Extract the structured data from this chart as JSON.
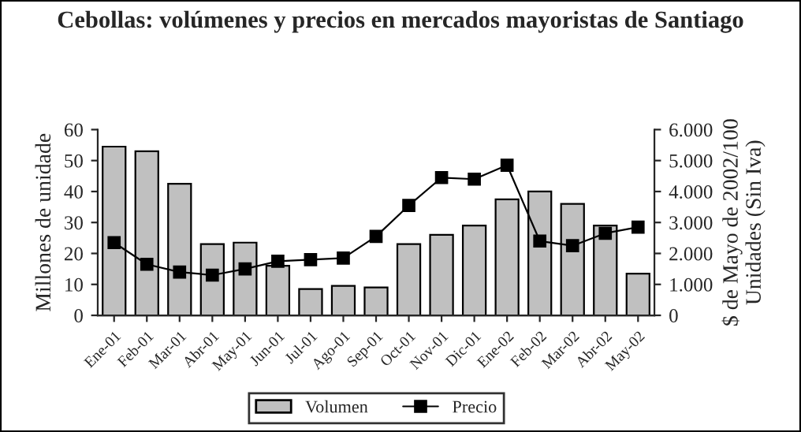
{
  "chart_data": {
    "type": "bar",
    "title": "Cebollas: volúmenes y precios en mercados mayoristas de Santiago",
    "ylabel": "Millones de unidade",
    "y2label": "$ de Mayo de 2002/100\nUnidades (Sin Iva)",
    "categories": [
      "Ene-01",
      "Feb-01",
      "Mar-01",
      "Abr-01",
      "May-01",
      "Jun-01",
      "Jul-01",
      "Ago-01",
      "Sep-01",
      "Oct-01",
      "Nov-01",
      "Dic-01",
      "Ene-02",
      "Feb-02",
      "Mar-02",
      "Abr-02",
      "May-02"
    ],
    "series": [
      {
        "name": "Volumen",
        "color": "#c0c0c0",
        "values": [
          54.5,
          53,
          42.5,
          23,
          23.5,
          16,
          8.5,
          9.5,
          9,
          23,
          26,
          29,
          37.5,
          40,
          36,
          29,
          13.5
        ]
      },
      {
        "name": "Precio",
        "type": "line",
        "axis": "y2",
        "color": "#000000",
        "marker": "square",
        "values": [
          2350,
          1650,
          1400,
          1300,
          1500,
          1750,
          1800,
          1850,
          2550,
          3550,
          4450,
          4400,
          4850,
          2400,
          2250,
          2650,
          2850
        ]
      }
    ],
    "ylim": [
      0,
      60
    ],
    "yticks": [
      0,
      10,
      20,
      30,
      40,
      50,
      60
    ],
    "y2lim": [
      0,
      6000
    ],
    "y2ticks": [
      {
        "value": 0,
        "label": "0"
      },
      {
        "value": 1000,
        "label": "1.000"
      },
      {
        "value": 2000,
        "label": "2.000"
      },
      {
        "value": 3000,
        "label": "3.000"
      },
      {
        "value": 4000,
        "label": "4.000"
      },
      {
        "value": 5000,
        "label": "5.000"
      },
      {
        "value": 6000,
        "label": "6.000"
      }
    ],
    "grid": false,
    "legend": "bottom"
  }
}
